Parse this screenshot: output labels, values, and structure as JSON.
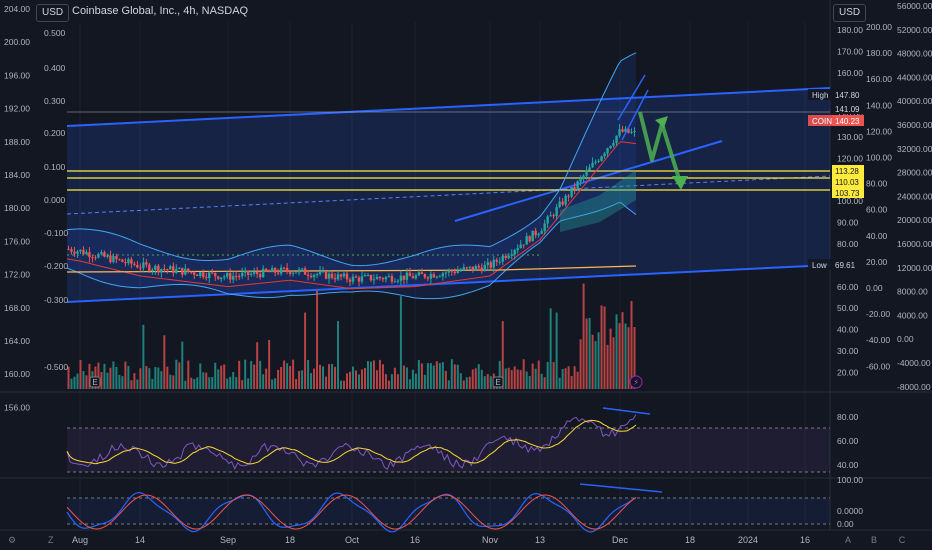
{
  "header": {
    "currency_left": "USD",
    "currency_right": "USD",
    "title": "Coinbase Global, Inc., 4h, NASDAQ"
  },
  "colors": {
    "bg": "#131722",
    "up": "#26a69a",
    "down": "#ef5350",
    "channel": "#2962ff",
    "level": "#ffeb3b",
    "arrow": "#4caf50",
    "rsi": "#7e57c2",
    "ma": "#ffb74d"
  },
  "axes": {
    "far_left": [
      "204.00",
      "200.00",
      "196.00",
      "192.00",
      "188.00",
      "184.00",
      "180.00",
      "176.00",
      "172.00",
      "168.00",
      "164.00",
      "160.00",
      "156.00"
    ],
    "left_osc": [
      "0.500",
      "0.400",
      "0.300",
      "0.200",
      "0.100",
      "0.000",
      "-0.100",
      "-0.200",
      "-0.300",
      "-0.500"
    ],
    "price": [
      "180.00",
      "170.00",
      "160.00",
      "150.00",
      "140.00",
      "130.00",
      "120.00",
      "110.00",
      "100.00",
      "90.00",
      "80.00",
      "70.00",
      "60.00",
      "50.00",
      "40.00",
      "30.00",
      "20.00"
    ],
    "right_2": [
      "200.00",
      "180.00",
      "160.00",
      "140.00",
      "120.00",
      "100.00",
      "80.00",
      "60.00",
      "40.00",
      "20.00",
      "0.00",
      "-20.00",
      "-40.00",
      "-60.00"
    ],
    "right_3": [
      "56000.00",
      "52000.00",
      "48000.00",
      "44000.00",
      "40000.00",
      "36000.00",
      "32000.00",
      "28000.00",
      "24000.00",
      "20000.00",
      "16000.00",
      "12000.00",
      "8000.00",
      "4000.00",
      "0.00",
      "-4000.00",
      "-8000.00"
    ],
    "rsi": [
      "80.00",
      "60.00",
      "40.00"
    ],
    "stoch": [
      "100.00",
      "0.0000",
      "0.00"
    ]
  },
  "time_axis": [
    "Aug",
    "14",
    "Sep",
    "18",
    "Oct",
    "16",
    "Nov",
    "13",
    "Dec",
    "18",
    "2024",
    "16"
  ],
  "tags": [
    {
      "label": "High",
      "value": "147.80"
    },
    {
      "label": "",
      "value": "141.09"
    },
    {
      "label": "COIN",
      "value": "140.23"
    },
    {
      "label": "",
      "value": "113.28"
    },
    {
      "label": "",
      "value": "110.03"
    },
    {
      "label": "",
      "value": "103.73"
    },
    {
      "label": "Low",
      "value": "69.61"
    }
  ],
  "markers": {
    "earnings": "E",
    "lightning": "⚡"
  },
  "tv_buttons": {
    "a": "A",
    "b": "B",
    "c": "C"
  },
  "chart_data": {
    "type": "candlestick",
    "symbol": "COIN",
    "interval": "4h",
    "exchange": "NASDAQ",
    "x_range": [
      "Aug",
      "2024 Jan"
    ],
    "y_range_price": [
      20,
      180
    ],
    "anchor_closes": [
      {
        "at": "Aug",
        "close": 85
      },
      {
        "at": "14",
        "close": 78
      },
      {
        "at": "Sep",
        "close": 73
      },
      {
        "at": "18",
        "close": 76
      },
      {
        "at": "Oct",
        "close": 72
      },
      {
        "at": "16",
        "close": 73
      },
      {
        "at": "Nov",
        "close": 78
      },
      {
        "at": "13",
        "close": 95
      },
      {
        "at": "Dec",
        "close": 141
      }
    ],
    "levels": [
      113.28,
      110.03,
      103.73
    ],
    "high": 147.8,
    "low": 69.61,
    "last": 140.23,
    "rsi_range": [
      40,
      80
    ],
    "stoch_range": [
      0,
      100
    ]
  }
}
